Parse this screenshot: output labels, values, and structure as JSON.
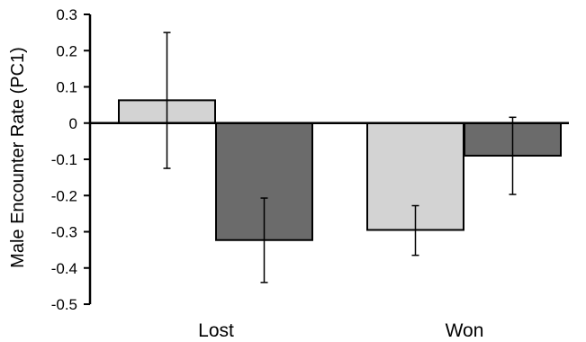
{
  "chart_data": {
    "type": "bar",
    "ylabel": "Male Encounter Rate (PC1)",
    "xlabel": "",
    "ylim": [
      -0.5,
      0.3
    ],
    "yticks": [
      0.3,
      0.2,
      0.1,
      0,
      -0.1,
      -0.2,
      -0.3,
      -0.4,
      -0.5
    ],
    "ytick_labels": [
      "0.3",
      "0.2",
      "0.1",
      "0",
      "-0.1",
      "-0.2",
      "-0.3",
      "-0.4",
      "-0.5"
    ],
    "categories": [
      "Lost",
      "Won"
    ],
    "grid": false,
    "legend": "none",
    "series": [
      {
        "color": "#d3d3d3",
        "values": [
          0.063,
          -0.295
        ],
        "err_low": [
          -0.125,
          -0.365
        ],
        "err_high": [
          0.25,
          -0.228
        ]
      },
      {
        "color": "#6b6b6b",
        "values": [
          -0.323,
          -0.09
        ],
        "err_low": [
          -0.44,
          -0.197
        ],
        "err_high": [
          -0.207,
          0.016
        ]
      }
    ]
  }
}
